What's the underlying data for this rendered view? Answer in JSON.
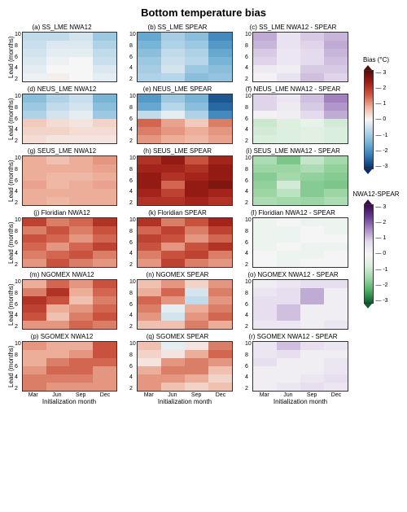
{
  "title": "Bottom temperature bias",
  "yaxis_label": "Lead (months)",
  "xaxis_label": "Initialization month",
  "yticks": [
    "2",
    "4",
    "6",
    "8",
    "10"
  ],
  "xticks": [
    "Mar",
    "Jun",
    "Sep",
    "Dec"
  ],
  "bias_cmap": {
    "label": "Bias (°C)",
    "ticks": [
      "3",
      "2",
      "1",
      "0",
      "-1",
      "-2",
      "-3"
    ],
    "stops": [
      "#5a0b09",
      "#a11f17",
      "#cf5a44",
      "#eeb49f",
      "#f6f6f6",
      "#b4d4e8",
      "#6eafd3",
      "#2f78b3",
      "#0a2f66"
    ]
  },
  "diff_cmap": {
    "label": "NWA12-SPEAR",
    "ticks": [
      "3",
      "2",
      "1",
      "0",
      "-1",
      "-2",
      "-3"
    ],
    "stops": [
      "#3b0a4d",
      "#6a3e94",
      "#a98cc4",
      "#e3d9ed",
      "#f5f5f5",
      "#d7edda",
      "#9cd6a5",
      "#4fae64",
      "#0b6130"
    ]
  },
  "panels": [
    {
      "id": "a",
      "title": "(a) SS_LME NWA12",
      "cmap": "bias",
      "ylab": true,
      "data": [
        [
          -0.6,
          -0.6,
          -0.4,
          -1.0
        ],
        [
          -0.5,
          -0.3,
          -0.3,
          -0.8
        ],
        [
          -0.4,
          -0.2,
          -0.2,
          -0.6
        ],
        [
          -0.3,
          -0.1,
          0.0,
          -0.5
        ],
        [
          -0.2,
          0.0,
          0.0,
          -0.3
        ],
        [
          -0.1,
          0.1,
          0.0,
          -0.2
        ]
      ]
    },
    {
      "id": "b",
      "title": "(b) SS_LME SPEAR",
      "cmap": "bias",
      "data": [
        [
          -1.6,
          -0.9,
          -1.2,
          -2.0
        ],
        [
          -1.4,
          -0.8,
          -1.0,
          -1.8
        ],
        [
          -1.2,
          -0.6,
          -0.8,
          -1.6
        ],
        [
          -1.0,
          -0.5,
          -0.7,
          -1.4
        ],
        [
          -0.9,
          -0.4,
          -1.0,
          -1.2
        ],
        [
          -0.8,
          -0.7,
          -1.2,
          -1.1
        ]
      ]
    },
    {
      "id": "c",
      "title": "(c) SS_LME NWA12 - SPEAR",
      "cmap": "diff",
      "data": [
        [
          1.2,
          0.5,
          0.9,
          1.1
        ],
        [
          1.1,
          0.5,
          0.8,
          1.2
        ],
        [
          0.9,
          0.4,
          0.7,
          1.1
        ],
        [
          0.8,
          0.4,
          0.7,
          1.0
        ],
        [
          0.3,
          0.2,
          0.9,
          0.9
        ],
        [
          0.1,
          0.5,
          1.0,
          0.8
        ]
      ]
    },
    {
      "id": "d",
      "title": "(d) NEUS_LME NWA12",
      "cmap": "bias",
      "ylab": true,
      "data": [
        [
          -1.2,
          -0.8,
          -0.5,
          -1.4
        ],
        [
          -1.0,
          -0.6,
          -0.4,
          -1.2
        ],
        [
          -0.8,
          -0.4,
          -0.2,
          -1.0
        ],
        [
          0.5,
          0.3,
          0.2,
          0.4
        ],
        [
          0.4,
          0.4,
          0.3,
          0.3
        ],
        [
          0.3,
          0.2,
          0.2,
          0.2
        ]
      ]
    },
    {
      "id": "e",
      "title": "(e) NEUS_LME SPEAR",
      "cmap": "bias",
      "data": [
        [
          -1.8,
          -1.0,
          -1.4,
          -2.6
        ],
        [
          -1.6,
          -0.7,
          -1.2,
          -2.4
        ],
        [
          -0.6,
          -0.2,
          -0.8,
          -2.0
        ],
        [
          1.4,
          0.9,
          0.5,
          1.2
        ],
        [
          1.2,
          1.0,
          0.8,
          1.0
        ],
        [
          1.0,
          0.8,
          0.7,
          0.9
        ]
      ]
    },
    {
      "id": "f",
      "title": "(f) NEUS_LME NWA12 - SPEAR",
      "cmap": "diff",
      "data": [
        [
          0.8,
          0.4,
          1.0,
          1.6
        ],
        [
          0.8,
          0.3,
          0.9,
          1.4
        ],
        [
          0.1,
          0.2,
          0.7,
          1.2
        ],
        [
          -0.9,
          -0.6,
          -0.3,
          -0.8
        ],
        [
          -0.8,
          -0.6,
          -0.5,
          -0.7
        ],
        [
          -0.7,
          -0.6,
          -0.5,
          -0.7
        ]
      ]
    },
    {
      "id": "g",
      "title": "(g) SEUS_LME NWA12",
      "cmap": "bias",
      "ylab": true,
      "data": [
        [
          0.8,
          0.6,
          0.8,
          1.0
        ],
        [
          0.8,
          0.8,
          0.8,
          0.9
        ],
        [
          0.8,
          0.7,
          0.7,
          0.8
        ],
        [
          0.9,
          0.7,
          0.8,
          0.9
        ],
        [
          0.8,
          0.8,
          0.8,
          0.8
        ],
        [
          0.8,
          0.7,
          0.8,
          0.8
        ]
      ]
    },
    {
      "id": "h",
      "title": "(h) SEUS_LME SPEAR",
      "cmap": "bias",
      "data": [
        [
          2.0,
          2.4,
          1.6,
          2.2
        ],
        [
          2.2,
          2.2,
          2.0,
          2.4
        ],
        [
          2.4,
          2.0,
          2.2,
          2.4
        ],
        [
          2.4,
          1.4,
          2.4,
          2.6
        ],
        [
          2.2,
          1.8,
          2.4,
          2.2
        ],
        [
          2.0,
          2.0,
          2.2,
          2.0
        ]
      ]
    },
    {
      "id": "i",
      "title": "(i) SEUS_LME NWA12 - SPEAR",
      "cmap": "diff",
      "data": [
        [
          -1.3,
          -1.8,
          -1.0,
          -1.4
        ],
        [
          -1.5,
          -1.5,
          -1.3,
          -1.6
        ],
        [
          -1.7,
          -1.4,
          -1.6,
          -1.7
        ],
        [
          -1.6,
          -0.8,
          -1.7,
          -1.8
        ],
        [
          -1.5,
          -1.1,
          -1.7,
          -1.5
        ],
        [
          -1.3,
          -1.4,
          -1.5,
          -1.3
        ]
      ]
    },
    {
      "id": "j",
      "title": "(j) Floridian NWA12",
      "cmap": "bias",
      "ylab": true,
      "data": [
        [
          1.8,
          1.2,
          1.4,
          2.0
        ],
        [
          1.2,
          1.6,
          1.2,
          1.6
        ],
        [
          1.6,
          1.4,
          1.0,
          1.4
        ],
        [
          1.4,
          1.0,
          1.4,
          1.8
        ],
        [
          1.2,
          1.4,
          1.6,
          1.2
        ],
        [
          1.0,
          1.6,
          1.2,
          1.0
        ]
      ]
    },
    {
      "id": "k",
      "title": "(k) Floridian SPEAR",
      "cmap": "bias",
      "data": [
        [
          2.0,
          1.2,
          1.6,
          2.2
        ],
        [
          1.4,
          1.8,
          1.2,
          1.8
        ],
        [
          1.8,
          1.6,
          1.0,
          1.4
        ],
        [
          1.6,
          1.0,
          1.6,
          2.0
        ],
        [
          1.2,
          1.6,
          1.8,
          1.2
        ],
        [
          1.0,
          1.8,
          1.2,
          1.0
        ]
      ]
    },
    {
      "id": "l",
      "title": "(l) Floridian NWA12 - SPEAR",
      "cmap": "diff",
      "data": [
        [
          -0.2,
          0.0,
          -0.2,
          -0.2
        ],
        [
          -0.2,
          -0.2,
          0.0,
          -0.2
        ],
        [
          -0.2,
          -0.2,
          0.0,
          0.0
        ],
        [
          -0.2,
          0.0,
          -0.2,
          -0.2
        ],
        [
          0.0,
          -0.2,
          -0.2,
          0.0
        ],
        [
          0.0,
          -0.2,
          0.0,
          0.0
        ]
      ]
    },
    {
      "id": "m",
      "title": "(m) NGOMEX NWA12",
      "cmap": "bias",
      "ylab": true,
      "data": [
        [
          0.8,
          1.4,
          1.0,
          1.6
        ],
        [
          1.2,
          2.0,
          0.8,
          1.4
        ],
        [
          2.0,
          1.6,
          0.6,
          1.2
        ],
        [
          1.8,
          0.8,
          1.0,
          1.4
        ],
        [
          1.6,
          0.6,
          1.2,
          1.6
        ],
        [
          1.0,
          1.0,
          1.4,
          1.2
        ]
      ]
    },
    {
      "id": "n",
      "title": "(n) NGOMEX SPEAR",
      "cmap": "bias",
      "data": [
        [
          0.6,
          1.0,
          0.4,
          1.0
        ],
        [
          0.8,
          1.4,
          -0.4,
          1.2
        ],
        [
          1.4,
          1.0,
          -0.6,
          1.0
        ],
        [
          1.2,
          -0.2,
          0.8,
          1.2
        ],
        [
          1.0,
          -0.4,
          1.0,
          1.4
        ],
        [
          0.6,
          0.6,
          1.2,
          0.8
        ]
      ]
    },
    {
      "id": "o",
      "title": "(o) NGOMEX NWA12 - SPEAR",
      "cmap": "diff",
      "data": [
        [
          0.2,
          0.4,
          0.6,
          0.6
        ],
        [
          0.4,
          0.6,
          1.2,
          0.2
        ],
        [
          0.6,
          0.6,
          1.2,
          0.2
        ],
        [
          0.6,
          1.0,
          0.2,
          0.2
        ],
        [
          0.6,
          1.0,
          0.2,
          0.2
        ],
        [
          0.4,
          0.4,
          0.2,
          0.4
        ]
      ]
    },
    {
      "id": "p",
      "title": "(p) SGOMEX NWA12",
      "cmap": "bias",
      "ylab": true,
      "xlab": true,
      "data": [
        [
          1.0,
          0.8,
          0.8,
          1.6
        ],
        [
          0.8,
          0.8,
          1.0,
          1.6
        ],
        [
          0.8,
          1.2,
          1.4,
          1.4
        ],
        [
          1.0,
          1.4,
          1.4,
          1.0
        ],
        [
          1.2,
          1.2,
          1.2,
          1.0
        ],
        [
          1.2,
          1.0,
          1.0,
          1.0
        ]
      ]
    },
    {
      "id": "q",
      "title": "(q) SGOMEX SPEAR",
      "cmap": "bias",
      "xlab": true,
      "data": [
        [
          0.6,
          -0.2,
          0.2,
          1.2
        ],
        [
          0.4,
          0.2,
          0.8,
          1.4
        ],
        [
          0.2,
          1.0,
          1.2,
          1.0
        ],
        [
          0.8,
          1.2,
          1.2,
          0.6
        ],
        [
          1.0,
          1.0,
          0.8,
          0.4
        ],
        [
          1.0,
          0.6,
          0.4,
          0.6
        ]
      ]
    },
    {
      "id": "r",
      "title": "(r) SGOMEX NWA12 - SPEAR",
      "cmap": "diff",
      "xlab": true,
      "data": [
        [
          0.4,
          1.0,
          0.6,
          0.4
        ],
        [
          0.4,
          0.6,
          0.2,
          0.2
        ],
        [
          0.6,
          0.2,
          0.2,
          0.4
        ],
        [
          0.2,
          0.2,
          0.2,
          0.4
        ],
        [
          0.2,
          0.2,
          0.4,
          0.6
        ],
        [
          0.2,
          0.4,
          0.6,
          0.4
        ]
      ]
    }
  ]
}
